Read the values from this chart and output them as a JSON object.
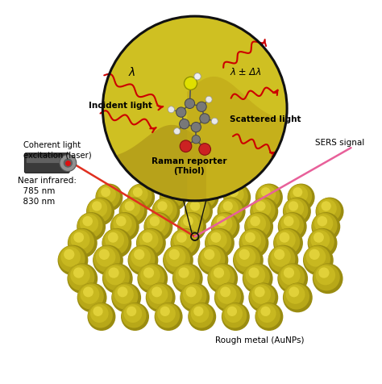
{
  "bg_color": "#ffffff",
  "gold_color": "#c8b820",
  "gold_dark": "#9a8c10",
  "gold_mid": "#b8a818",
  "gold_highlight": "#e8d840",
  "gold_light": "#d4c828",
  "circle_bg": "#cfc020",
  "circle_outline": "#111111",
  "red_arrow": "#cc0000",
  "red_laser": "#dd2200",
  "pink_laser": "#e8609a",
  "text_color": "#000000",
  "labels": {
    "incident_light": "Incident light",
    "scattered_light": "Scattered light",
    "raman_reporter": "Raman reporter\n(Thiol)",
    "coherent_light": "Coherent light\nexcitation (laser)",
    "near_infrared": "Near infrared:\n  785 nm\n  830 nm",
    "rough_metal": "Rough metal (AuNPs)",
    "sers_signal": "SERS signal",
    "lambda": "λ",
    "lambda_delta": "λ ± Δλ"
  },
  "figsize": [
    4.74,
    4.77
  ],
  "dpi": 100
}
